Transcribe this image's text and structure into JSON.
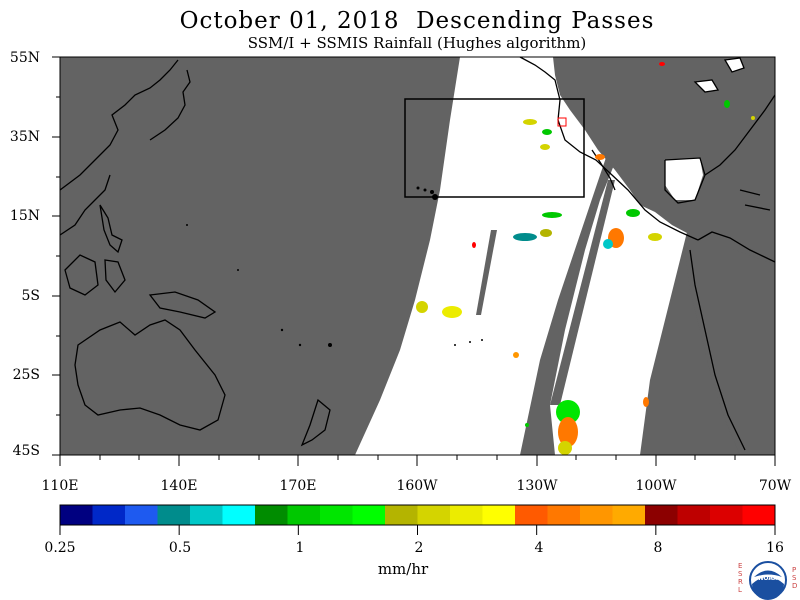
{
  "header": {
    "title": "October 01, 2018  Descending Passes",
    "subtitle": "SSM/I + SSMIS Rainfall (Hughes algorithm)"
  },
  "axes": {
    "lat_labels": [
      "55N",
      "35N",
      "15N",
      "5S",
      "25S",
      "45S"
    ],
    "lon_labels": [
      "110E",
      "140E",
      "170E",
      "160W",
      "130W",
      "100W",
      "70W"
    ]
  },
  "colorbar": {
    "colors": [
      "#000080",
      "#0028c8",
      "#1e5af0",
      "#008c8c",
      "#00c8c8",
      "#00ffff",
      "#008c00",
      "#00c800",
      "#00e600",
      "#00ff00",
      "#b4b400",
      "#d4d400",
      "#ecec00",
      "#ffff00",
      "#ff5a00",
      "#ff7800",
      "#ff9600",
      "#ffaa00",
      "#8c0000",
      "#be0000",
      "#dc0000",
      "#ff0000"
    ],
    "tick_labels": [
      "0.25",
      "0.5",
      "1",
      "2",
      "4",
      "8",
      "16"
    ],
    "units": "mm/hr"
  },
  "legend_colors": {
    "land": "#000000",
    "no_data": "#636363",
    "valid_data": "#ffffff"
  },
  "logo": {
    "name": "noaa-logo",
    "left_letters": "ESRL",
    "right_letters": "PSD",
    "center_text": "NOAA"
  }
}
